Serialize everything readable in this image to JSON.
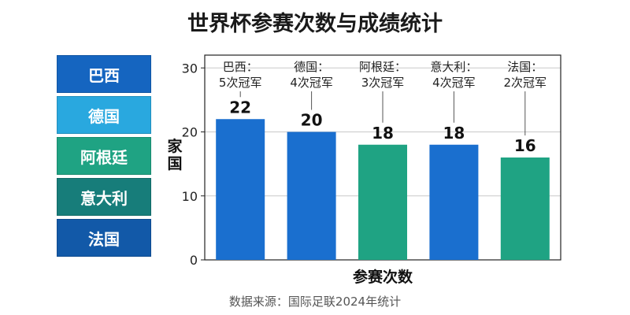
{
  "title": "世界杯参赛次数与成绩统计",
  "source": "数据来源：国际足联2024年统计",
  "legend": [
    {
      "label": "巴西",
      "color": "#1565c0"
    },
    {
      "label": "德国",
      "color": "#29a8df"
    },
    {
      "label": "阿根廷",
      "color": "#1fa383"
    },
    {
      "label": "意大利",
      "color": "#177d7a"
    },
    {
      "label": "法国",
      "color": "#1259a8"
    }
  ],
  "chart_data": {
    "type": "bar",
    "categories": [
      "巴西",
      "德国",
      "阿根廷",
      "意大利",
      "法国"
    ],
    "values": [
      22,
      20,
      18,
      18,
      16
    ],
    "annotations": [
      [
        "巴西：",
        "5次冠军"
      ],
      [
        "德国：",
        "4次冠军"
      ],
      [
        "阿根廷：",
        "3次冠军"
      ],
      [
        "意大利：",
        "4次冠军"
      ],
      [
        "法国：",
        "2次冠军"
      ]
    ],
    "bar_colors": [
      "#1a6fcf",
      "#1a6fcf",
      "#1fa383",
      "#1a6fcf",
      "#1fa383"
    ],
    "title": "世界杯参赛次数与成绩统计",
    "xlabel": "参赛次数",
    "ylabel": "家国",
    "yticks": [
      0,
      10,
      20,
      30
    ],
    "ylim": [
      0,
      32
    ],
    "grid": true
  }
}
